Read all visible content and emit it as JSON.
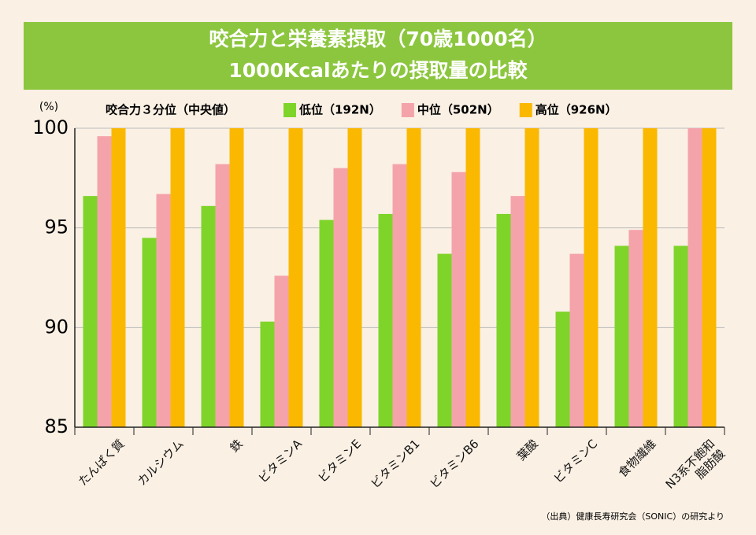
{
  "chart_data": {
    "type": "bar",
    "title": "咬合力と栄養素摂取（70歳1000名）",
    "subtitle": "1000Kcalあたりの摂取量の比較",
    "y_label": "(%)",
    "legend_title": "咬合力３分位（中央値）",
    "categories": [
      "たんぱく質",
      "カルシウム",
      "鉄",
      "ビタミンA",
      "ビタミンE",
      "ビタミンB1",
      "ビタミンB6",
      "葉酸",
      "ビタミンC",
      "食物繊維",
      "N3系不飽和\n脂肪酸"
    ],
    "series": [
      {
        "name": "低位（192N）",
        "color": "#7fd42a",
        "values": [
          96.6,
          94.5,
          96.1,
          90.3,
          95.4,
          95.7,
          93.7,
          95.7,
          90.8,
          94.1,
          94.1
        ]
      },
      {
        "name": "中位（502N）",
        "color": "#f5a3aa",
        "values": [
          99.6,
          96.7,
          98.2,
          92.6,
          98.0,
          98.2,
          97.8,
          96.6,
          93.7,
          94.9,
          100
        ]
      },
      {
        "name": "高位（926N）",
        "color": "#fbb800",
        "values": [
          100,
          100,
          100,
          100,
          100,
          100,
          100,
          100,
          100,
          100,
          100
        ]
      }
    ],
    "ylim": [
      85,
      100
    ],
    "yticks": [
      85,
      90,
      95,
      100
    ],
    "grid": true,
    "source": "（出典）健康長寿研究会（SONIC）の研究より"
  }
}
